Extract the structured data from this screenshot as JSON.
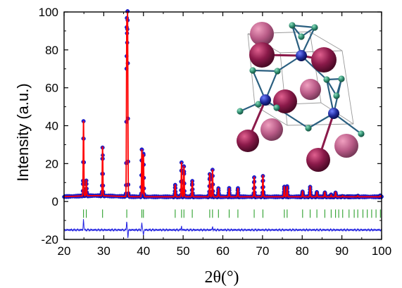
{
  "chart_data": {
    "type": "line",
    "title": "",
    "xlabel": "2θ(°)",
    "ylabel": "Intensity (a.u.)",
    "xlim": [
      20,
      100
    ],
    "ylim": [
      -20,
      100
    ],
    "xticks": [
      "20",
      "30",
      "40",
      "50",
      "60",
      "70",
      "80",
      "90",
      "100"
    ],
    "yticks": [
      "-20",
      "0",
      "20",
      "40",
      "60",
      "80",
      "100"
    ],
    "baseline": 2.5,
    "series": [
      {
        "role": "observed",
        "color": "#2020e0",
        "marker": "circle",
        "peaks": [
          [
            24.9,
            43
          ],
          [
            25.6,
            11
          ],
          [
            29.7,
            29
          ],
          [
            35.8,
            93
          ],
          [
            36.0,
            97
          ],
          [
            39.6,
            28
          ],
          [
            40.0,
            25
          ],
          [
            48.0,
            9
          ],
          [
            49.6,
            21
          ],
          [
            50.2,
            19
          ],
          [
            52.3,
            11
          ],
          [
            56.7,
            15
          ],
          [
            57.4,
            17
          ],
          [
            58.9,
            7
          ],
          [
            61.6,
            7
          ],
          [
            63.8,
            7
          ],
          [
            67.9,
            13
          ],
          [
            70.1,
            14
          ],
          [
            75.5,
            8
          ],
          [
            76.2,
            8
          ],
          [
            80.1,
            5.5
          ],
          [
            82.0,
            8
          ],
          [
            83.7,
            5
          ],
          [
            85.7,
            5
          ],
          [
            87.3,
            3.5
          ],
          [
            88.4,
            5
          ],
          [
            90.2,
            3
          ],
          [
            91.8,
            2.5
          ],
          [
            94.0,
            3
          ],
          [
            99.7,
            3
          ]
        ]
      },
      {
        "role": "calculated",
        "color": "#ff0000"
      },
      {
        "role": "bragg_positions",
        "color": "#2ca02c",
        "y": 9,
        "x": [
          24.9,
          25.6,
          29.7,
          35.8,
          39.6,
          40.0,
          48.0,
          49.6,
          50.2,
          52.3,
          56.7,
          57.4,
          58.9,
          61.6,
          63.8,
          67.9,
          70.1,
          75.5,
          76.2,
          80.1,
          82.0,
          83.7,
          85.7,
          87.3,
          88.4,
          89.2,
          90.2,
          91.8,
          93.1,
          94.0,
          95.3,
          96.4,
          97.5,
          98.6,
          99.7
        ]
      },
      {
        "role": "difference",
        "color": "#2020e0",
        "offset": -15,
        "features": [
          [
            24.9,
            6
          ],
          [
            35.8,
            5
          ],
          [
            36.1,
            -4
          ],
          [
            39.6,
            4
          ],
          [
            40.0,
            -3
          ],
          [
            49.6,
            2
          ],
          [
            57.4,
            2
          ]
        ]
      }
    ],
    "inset": {
      "type": "crystal-structure",
      "colors": {
        "large_atom": "#8b1a4a",
        "small_metal": "#1f2a9a",
        "light_atom": "#2e8b6e",
        "cell_edge": "#9a9a9a"
      }
    }
  },
  "colors": {
    "observed": "#2020e0",
    "calculated": "#ff0000",
    "bragg": "#2ca02c",
    "axes": "#000000"
  }
}
